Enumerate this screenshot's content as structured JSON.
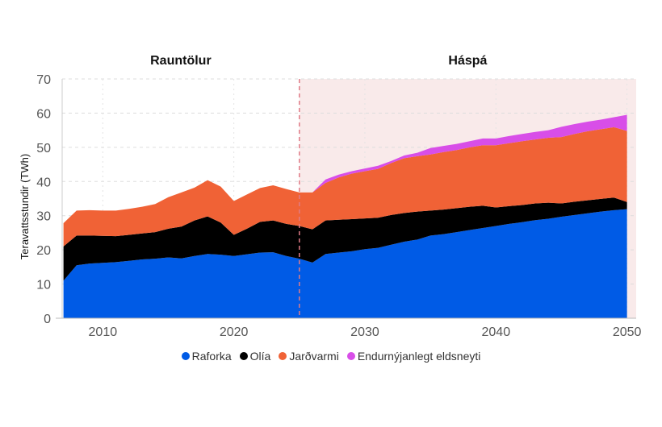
{
  "chart_data": {
    "type": "area",
    "stacked": true,
    "ylabel": "Teravattsstundir (TWh)",
    "xlabel": "",
    "ylim": [
      0,
      70
    ],
    "xlim": [
      2007,
      2050
    ],
    "yticks": [
      0,
      10,
      20,
      30,
      40,
      50,
      60,
      70
    ],
    "xticks": [
      2010,
      2020,
      2030,
      2040,
      2050
    ],
    "grid": true,
    "legend_placement": "bottom",
    "regions": [
      {
        "label": "Rauntölur",
        "from": 2007,
        "to": 2025
      },
      {
        "label": "Háspá",
        "from": 2025,
        "to": 2050,
        "shaded": true,
        "shade_color": "#f9eaea",
        "divider_color": "#e07b86"
      }
    ],
    "x": [
      2007,
      2008,
      2009,
      2010,
      2011,
      2012,
      2013,
      2014,
      2015,
      2016,
      2017,
      2018,
      2019,
      2020,
      2021,
      2022,
      2023,
      2024,
      2025,
      2026,
      2027,
      2028,
      2029,
      2030,
      2031,
      2032,
      2033,
      2034,
      2035,
      2036,
      2037,
      2038,
      2039,
      2040,
      2041,
      2042,
      2043,
      2044,
      2045,
      2046,
      2047,
      2048,
      2049,
      2050
    ],
    "series": [
      {
        "name": "Raforka",
        "color": "#005be6",
        "values": [
          11,
          15.5,
          16,
          16.2,
          16.4,
          16.8,
          17.2,
          17.4,
          17.8,
          17.5,
          18.2,
          18.8,
          18.6,
          18.2,
          18.7,
          19.2,
          19.3,
          18.2,
          17.4,
          16.3,
          18.8,
          19.2,
          19.6,
          20.2,
          20.6,
          21.5,
          22.4,
          23,
          24.2,
          24.6,
          25.2,
          25.8,
          26.4,
          27,
          27.6,
          28.1,
          28.7,
          29.1,
          29.7,
          30.2,
          30.7,
          31.2,
          31.6,
          31.9
        ]
      },
      {
        "name": "Olía",
        "color": "#000000",
        "values": [
          10,
          8.7,
          8.2,
          7.9,
          7.6,
          7.6,
          7.6,
          7.8,
          8.4,
          9.3,
          10.4,
          11,
          9.4,
          6.2,
          7.5,
          9,
          9.3,
          9.4,
          9.6,
          9.7,
          9.8,
          9.6,
          9.4,
          9,
          8.8,
          8.7,
          8.4,
          8.2,
          7.3,
          7.2,
          7,
          6.8,
          6.5,
          5.4,
          5.2,
          5,
          4.9,
          4.7,
          3.9,
          3.9,
          3.8,
          3.7,
          3.7,
          2.1
        ]
      },
      {
        "name": "Jarðvarmi",
        "color": "#f06236",
        "values": [
          6.8,
          7.3,
          7.4,
          7.4,
          7.5,
          7.6,
          7.8,
          8.2,
          9.2,
          10,
          9.6,
          10.6,
          10.5,
          9.9,
          10,
          9.9,
          10.3,
          10.2,
          9.8,
          10.8,
          11,
          12.4,
          13.3,
          13.8,
          14.3,
          15.2,
          16,
          16.2,
          16.4,
          16.8,
          17,
          17.4,
          17.7,
          18.2,
          18.4,
          18.7,
          18.7,
          19,
          19.4,
          19.8,
          20.2,
          20.4,
          20.6,
          20.8
        ]
      },
      {
        "name": "Endurnýjanlegt eldsneyti",
        "color": "#d84ee8",
        "values": [
          0,
          0,
          0,
          0,
          0,
          0,
          0,
          0,
          0,
          0,
          0,
          0,
          0,
          0,
          0,
          0,
          0,
          0,
          0,
          0,
          1,
          0.8,
          0.7,
          0.8,
          0.9,
          0.6,
          0.8,
          1,
          1.9,
          1.8,
          1.8,
          1.8,
          2,
          2,
          2.1,
          2.1,
          2.2,
          2.2,
          3,
          2.9,
          2.8,
          2.8,
          2.9,
          4.7
        ]
      }
    ]
  }
}
